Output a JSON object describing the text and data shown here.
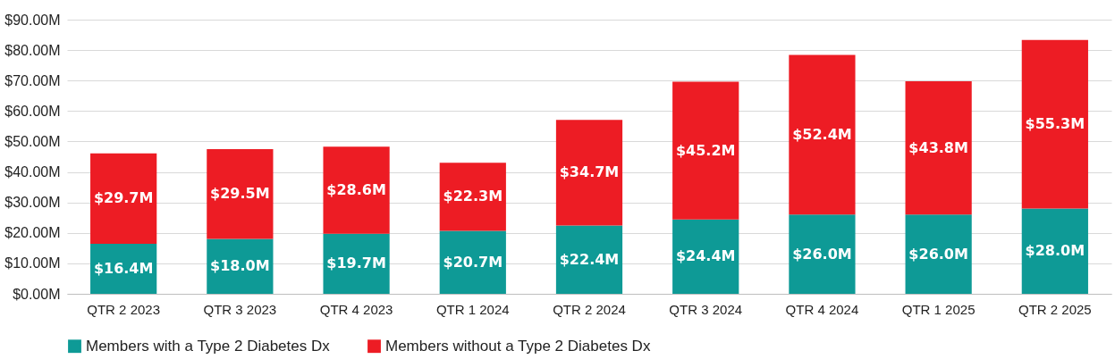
{
  "chart_data": {
    "type": "bar",
    "stacked": true,
    "categories": [
      "QTR 2 2023",
      "QTR 3 2023",
      "QTR 4 2023",
      "QTR 1 2024",
      "QTR 2 2024",
      "QTR 3 2024",
      "QTR 4 2024",
      "QTR 1 2025",
      "QTR 2 2025"
    ],
    "series": [
      {
        "name": "Members with a Type 2 Diabetes Dx",
        "color": "#0e9a96",
        "values": [
          16.4,
          18.0,
          19.7,
          20.7,
          22.4,
          24.4,
          26.0,
          26.0,
          28.0
        ],
        "value_labels": [
          "$16.4M",
          "$18.0M",
          "$19.7M",
          "$20.7M",
          "$22.4M",
          "$24.4M",
          "$26.0M",
          "$26.0M",
          "$28.0M"
        ]
      },
      {
        "name": "Members without a Type 2 Diabetes Dx",
        "color": "#ed1c24",
        "values": [
          29.7,
          29.5,
          28.6,
          22.3,
          34.7,
          45.2,
          52.4,
          43.8,
          55.3
        ],
        "value_labels": [
          "$29.7M",
          "$29.5M",
          "$28.6M",
          "$22.3M",
          "$34.7M",
          "$45.2M",
          "$52.4M",
          "$43.8M",
          "$55.3M"
        ]
      }
    ],
    "ylim": [
      0,
      90
    ],
    "yticks": [
      {
        "value": 0,
        "label": "$0.00M"
      },
      {
        "value": 10,
        "label": "$10.00M"
      },
      {
        "value": 20,
        "label": "$20.00M"
      },
      {
        "value": 30,
        "label": "$30.00M"
      },
      {
        "value": 40,
        "label": "$40.00M"
      },
      {
        "value": 50,
        "label": "$50.00M"
      },
      {
        "value": 60,
        "label": "$60.00M"
      },
      {
        "value": 70,
        "label": "$70.00M"
      },
      {
        "value": 80,
        "label": "$80.00M"
      },
      {
        "value": 90,
        "label": "$90.00M"
      }
    ],
    "grid": "y",
    "legend": "bottom"
  }
}
